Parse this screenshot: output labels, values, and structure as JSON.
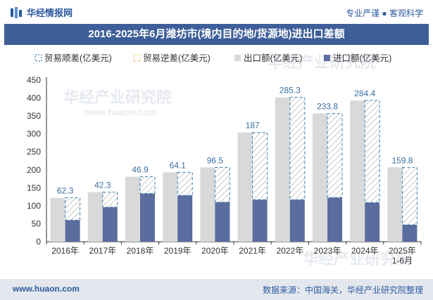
{
  "header": {
    "brand_name": "华经情报网",
    "tagline": "专业严谨 ● 客观科学",
    "logo_icon": "huajing-logo-icon",
    "title": "2016-2025年6月潍坊市(境内目的地/货源地)进出口差额"
  },
  "footer": {
    "website": "www.huaon.com",
    "source": "数据来源：中国海关，华经产业研究院整理"
  },
  "watermark": {
    "text": "华经产业研究院",
    "url": "www.huaon.com"
  },
  "colors": {
    "export_bar": "#d9d9d9",
    "import_bar": "#5b6c9e",
    "surplus_outline": "#3a7fb0",
    "deficit_outline": "#e8c85c",
    "value_label": "#3a6fa3",
    "title_bg": "#3d5e98"
  },
  "chart_data": {
    "type": "bar",
    "categories": [
      "2016年",
      "2017年",
      "2018年",
      "2019年",
      "2020年",
      "2021年",
      "2022年",
      "2023年",
      "2024年",
      "2025年\n1-6月"
    ],
    "series": [
      {
        "name": "贸易顺差(亿美元)",
        "values": [
          62.3,
          42.3,
          46.9,
          64.1,
          96.5,
          187,
          285.3,
          233.8,
          284.4,
          159.8
        ]
      },
      {
        "name": "贸易逆差(亿美元)",
        "values": [
          0,
          0,
          0,
          0,
          0,
          0,
          0,
          0,
          0,
          0
        ]
      },
      {
        "name": "出口额(亿美元)",
        "values": [
          122,
          138,
          181,
          193,
          207,
          304,
          402,
          357,
          393,
          207
        ]
      },
      {
        "name": "进口额(亿美元)",
        "values": [
          60,
          96,
          134,
          129,
          110,
          117,
          117,
          123,
          109,
          47
        ]
      }
    ],
    "surplus_labels": [
      "62.3",
      "42.3",
      "46.9",
      "64.1",
      "96.5",
      "187",
      "285.3",
      "233.8",
      "284.4",
      "159.8"
    ],
    "ylim": [
      0,
      450
    ],
    "yticks": [
      0,
      50,
      100,
      150,
      200,
      250,
      300,
      350,
      400,
      450
    ],
    "legend_position": "top"
  }
}
